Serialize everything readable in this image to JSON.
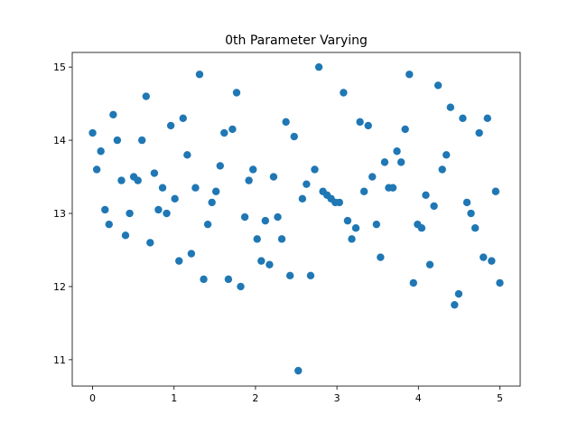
{
  "chart_data": {
    "type": "scatter",
    "title": "0th Parameter Varying",
    "color": "#1f77b4",
    "x": [
      0,
      0.051,
      0.101,
      0.152,
      0.202,
      0.253,
      0.303,
      0.354,
      0.404,
      0.455,
      0.505,
      0.556,
      0.606,
      0.657,
      0.707,
      0.758,
      0.808,
      0.859,
      0.909,
      0.96,
      1.01,
      1.061,
      1.111,
      1.162,
      1.212,
      1.263,
      1.313,
      1.364,
      1.414,
      1.465,
      1.515,
      1.566,
      1.616,
      1.667,
      1.717,
      1.768,
      1.818,
      1.869,
      1.919,
      1.97,
      2.02,
      2.071,
      2.121,
      2.172,
      2.222,
      2.273,
      2.323,
      2.374,
      2.424,
      2.475,
      2.525,
      2.576,
      2.626,
      2.677,
      2.727,
      2.778,
      2.828,
      2.879,
      2.929,
      2.98,
      3.03,
      3.081,
      3.131,
      3.182,
      3.232,
      3.283,
      3.333,
      3.384,
      3.434,
      3.485,
      3.535,
      3.586,
      3.636,
      3.687,
      3.737,
      3.788,
      3.838,
      3.889,
      3.939,
      3.99,
      4.04,
      4.091,
      4.141,
      4.192,
      4.242,
      4.293,
      4.343,
      4.394,
      4.444,
      4.495,
      4.545,
      4.596,
      4.646,
      4.697,
      4.747,
      4.798,
      4.848,
      4.899,
      4.949,
      5
    ],
    "values": [
      14.1,
      13.6,
      13.85,
      13.05,
      12.85,
      14.35,
      14.0,
      13.45,
      12.7,
      13.0,
      13.5,
      13.45,
      14.0,
      14.6,
      12.6,
      13.55,
      13.05,
      13.35,
      13.0,
      14.2,
      13.2,
      12.35,
      14.3,
      13.8,
      12.45,
      13.35,
      14.9,
      12.1,
      12.85,
      13.15,
      13.3,
      13.65,
      14.1,
      12.1,
      14.15,
      14.65,
      12.0,
      12.95,
      13.45,
      13.6,
      12.65,
      12.35,
      12.9,
      12.3,
      13.5,
      12.95,
      12.65,
      14.25,
      12.15,
      14.05,
      10.85,
      13.2,
      13.4,
      12.15,
      13.6,
      15.0,
      13.3,
      13.25,
      13.2,
      13.15,
      13.15,
      14.65,
      12.9,
      12.65,
      12.8,
      14.25,
      13.3,
      14.2,
      13.5,
      12.85,
      12.4,
      13.7,
      13.35,
      13.35,
      13.85,
      13.7,
      14.15,
      14.9,
      12.05,
      12.85,
      12.8,
      13.25,
      12.3,
      13.1,
      14.75,
      13.6,
      13.8,
      14.45,
      11.75,
      11.9,
      14.3,
      13.15,
      13.0,
      12.8,
      14.1,
      12.4,
      14.3,
      12.35,
      13.3,
      12.05
    ],
    "xlim": [
      -0.25,
      5.25
    ],
    "xticks": [
      0,
      1,
      2,
      3,
      4,
      5
    ],
    "ylim": [
      10.64,
      15.2
    ],
    "yticks": [
      11,
      12,
      13,
      14,
      15
    ]
  }
}
